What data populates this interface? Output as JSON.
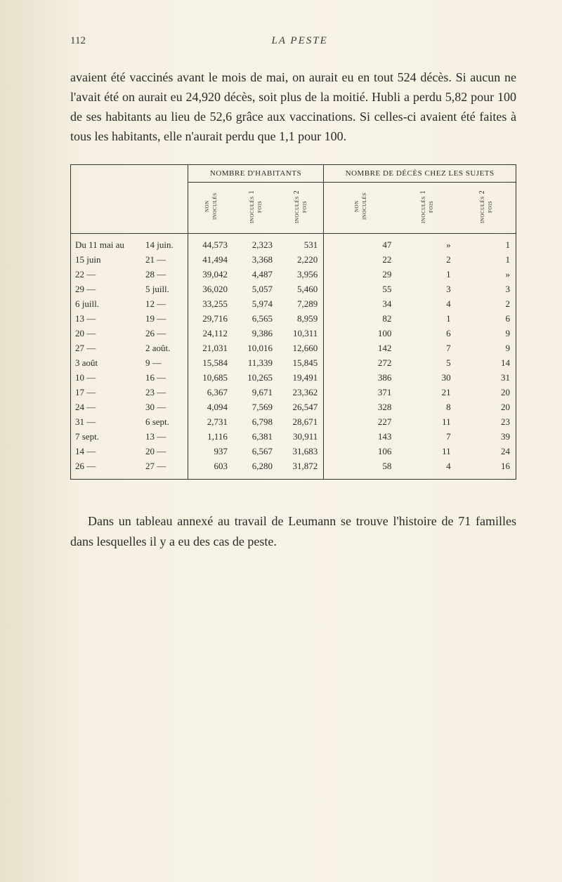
{
  "page_number": "112",
  "chapter_title": "LA PESTE",
  "paragraph1": "avaient été vaccinés avant le mois de mai, on aurait eu en tout 524 décès. Si aucun ne l'avait été on aurait eu 24,920 décès, soit plus de la moitié. Hubli a perdu 5,82 pour 100 de ses habitants au lieu de 52,6 grâce aux vaccinations. Si celles-ci avaient été faites à tous les habitants, elle n'aurait perdu que 1,1 pour 100.",
  "paragraph2": "Dans un tableau annexé au travail de Leumann se trouve l'histoire de 71 familles dans lesquelles il y a eu des cas de peste.",
  "table": {
    "header_group_1": "NOMBRE D'HABITANTS",
    "header_group_2": "NOMBRE DE DÉCÈS CHEZ LES SUJETS",
    "col_labels": {
      "non_inocules": "non inoculés",
      "inocules_1": "inoculés 1 fois",
      "inocules_2": "inoculés 2 fois"
    },
    "rows": [
      {
        "d1": "Du 11 mai au",
        "d2": "14 juin.",
        "h_non": "44,573",
        "h_i1": "2,323",
        "h_i2": "531",
        "d_non": "47",
        "d_i1": "»",
        "d_i2": "1"
      },
      {
        "d1": "15 juin",
        "d2": "21  —",
        "h_non": "41,494",
        "h_i1": "3,368",
        "h_i2": "2,220",
        "d_non": "22",
        "d_i1": "2",
        "d_i2": "1"
      },
      {
        "d1": "22  —",
        "d2": "28  —",
        "h_non": "39,042",
        "h_i1": "4,487",
        "h_i2": "3,956",
        "d_non": "29",
        "d_i1": "1",
        "d_i2": "»"
      },
      {
        "d1": "29  —",
        "d2": "5 juill.",
        "h_non": "36,020",
        "h_i1": "5,057",
        "h_i2": "5,460",
        "d_non": "55",
        "d_i1": "3",
        "d_i2": "3"
      },
      {
        "d1": "6 juill.",
        "d2": "12  —",
        "h_non": "33,255",
        "h_i1": "5,974",
        "h_i2": "7,289",
        "d_non": "34",
        "d_i1": "4",
        "d_i2": "2"
      },
      {
        "d1": "13  —",
        "d2": "19  —",
        "h_non": "29,716",
        "h_i1": "6,565",
        "h_i2": "8,959",
        "d_non": "82",
        "d_i1": "1",
        "d_i2": "6"
      },
      {
        "d1": "20  —",
        "d2": "26  —",
        "h_non": "24,112",
        "h_i1": "9,386",
        "h_i2": "10,311",
        "d_non": "100",
        "d_i1": "6",
        "d_i2": "9"
      },
      {
        "d1": "27  —",
        "d2": "2 août.",
        "h_non": "21,031",
        "h_i1": "10,016",
        "h_i2": "12,660",
        "d_non": "142",
        "d_i1": "7",
        "d_i2": "9"
      },
      {
        "d1": "3 août",
        "d2": "9  —",
        "h_non": "15,584",
        "h_i1": "11,339",
        "h_i2": "15,845",
        "d_non": "272",
        "d_i1": "5",
        "d_i2": "14"
      },
      {
        "d1": "10  —",
        "d2": "16  —",
        "h_non": "10,685",
        "h_i1": "10,265",
        "h_i2": "19,491",
        "d_non": "386",
        "d_i1": "30",
        "d_i2": "31"
      },
      {
        "d1": "17  —",
        "d2": "23  —",
        "h_non": "6,367",
        "h_i1": "9,671",
        "h_i2": "23,362",
        "d_non": "371",
        "d_i1": "21",
        "d_i2": "20"
      },
      {
        "d1": "24  —",
        "d2": "30  —",
        "h_non": "4,094",
        "h_i1": "7,569",
        "h_i2": "26,547",
        "d_non": "328",
        "d_i1": "8",
        "d_i2": "20"
      },
      {
        "d1": "31  —",
        "d2": "6 sept.",
        "h_non": "2,731",
        "h_i1": "6,798",
        "h_i2": "28,671",
        "d_non": "227",
        "d_i1": "11",
        "d_i2": "23"
      },
      {
        "d1": "7 sept.",
        "d2": "13  —",
        "h_non": "1,116",
        "h_i1": "6,381",
        "h_i2": "30,911",
        "d_non": "143",
        "d_i1": "7",
        "d_i2": "39"
      },
      {
        "d1": "14  —",
        "d2": "20  —",
        "h_non": "937",
        "h_i1": "6,567",
        "h_i2": "31,683",
        "d_non": "106",
        "d_i1": "11",
        "d_i2": "24"
      },
      {
        "d1": "26  —",
        "d2": "27  —",
        "h_non": "603",
        "h_i1": "6,280",
        "h_i2": "31,872",
        "d_non": "58",
        "d_i1": "4",
        "d_i2": "16"
      }
    ]
  },
  "colors": {
    "page_bg": "#f5f0e1",
    "text": "#2a2a2a",
    "border": "#333333"
  }
}
